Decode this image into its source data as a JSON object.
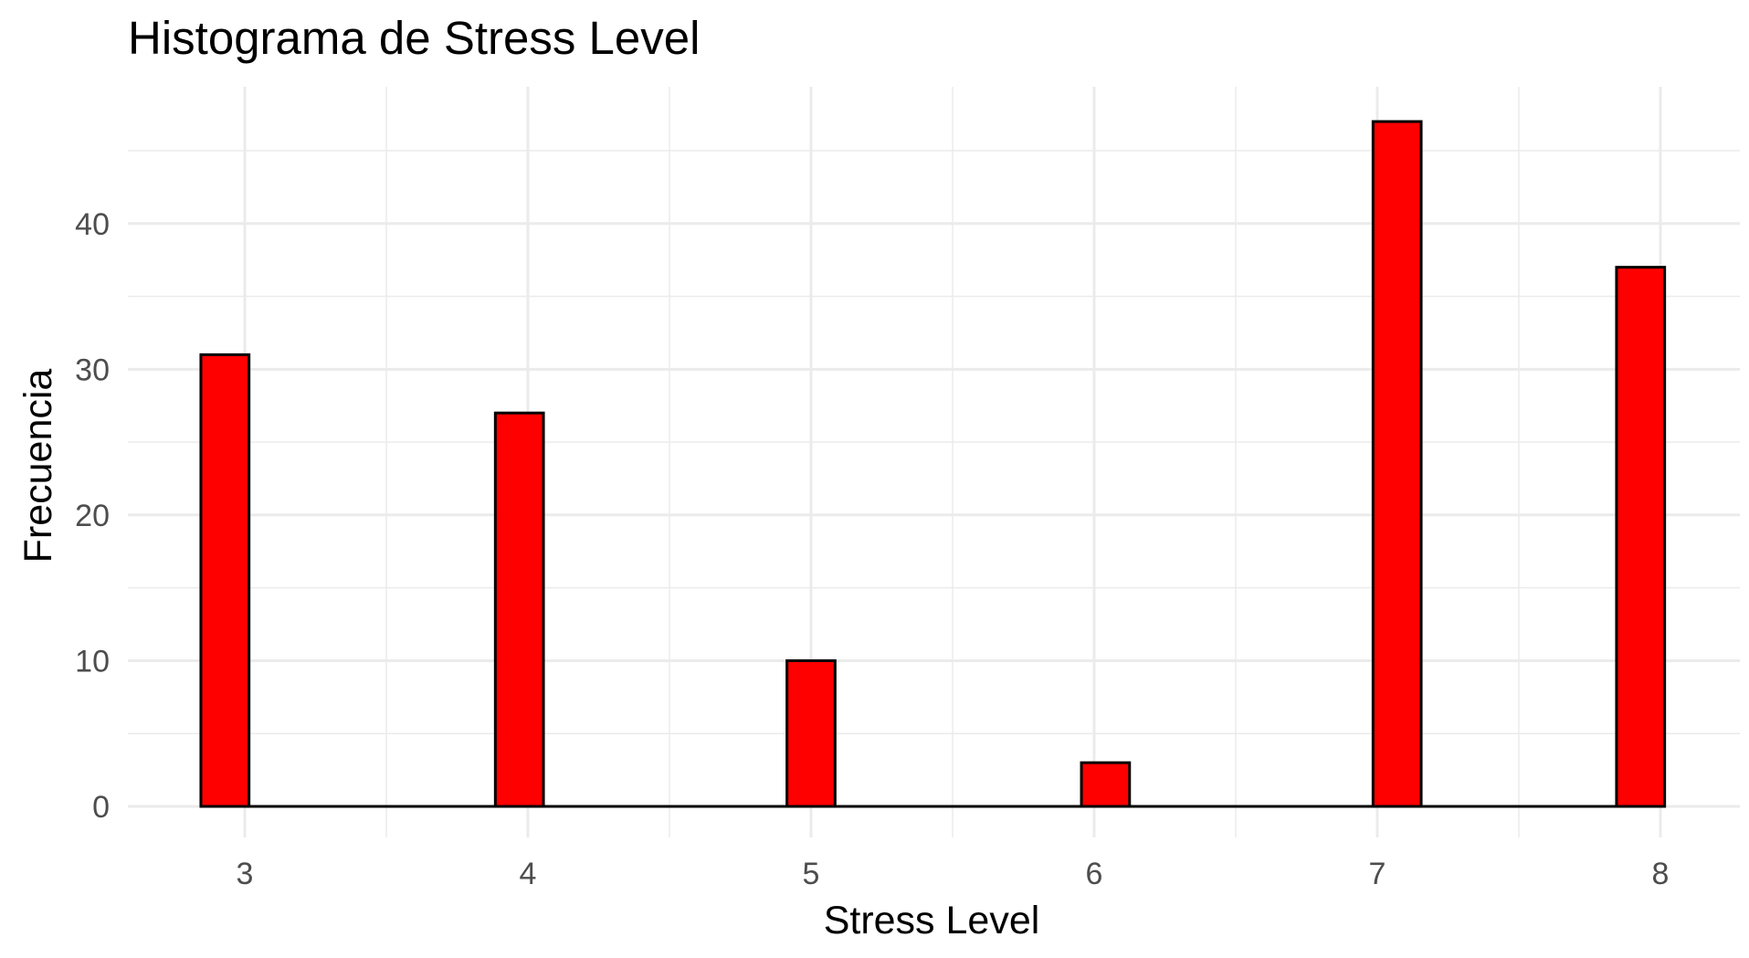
{
  "chart_data": {
    "type": "bar",
    "title": "Histograma de Stress Level",
    "xlabel": "Stress Level",
    "ylabel": "Frecuencia",
    "x_ticks": [
      "3",
      "4",
      "5",
      "6",
      "7",
      "8"
    ],
    "y_ticks": [
      "0",
      "10",
      "20",
      "30",
      "40"
    ],
    "xlim": [
      2.6,
      8.25
    ],
    "ylim": [
      0,
      47
    ],
    "bin_width": 0.17,
    "bars": [
      {
        "x": 2.93,
        "value": 31
      },
      {
        "x": 3.97,
        "value": 27
      },
      {
        "x": 5.0,
        "value": 10
      },
      {
        "x": 6.04,
        "value": 3
      },
      {
        "x": 7.07,
        "value": 47
      },
      {
        "x": 7.93,
        "value": 37
      }
    ],
    "bar_fill": "#ff0000",
    "bar_stroke": "#000000",
    "grid": true,
    "grid_color": "#ebebeb",
    "legend": "none"
  }
}
